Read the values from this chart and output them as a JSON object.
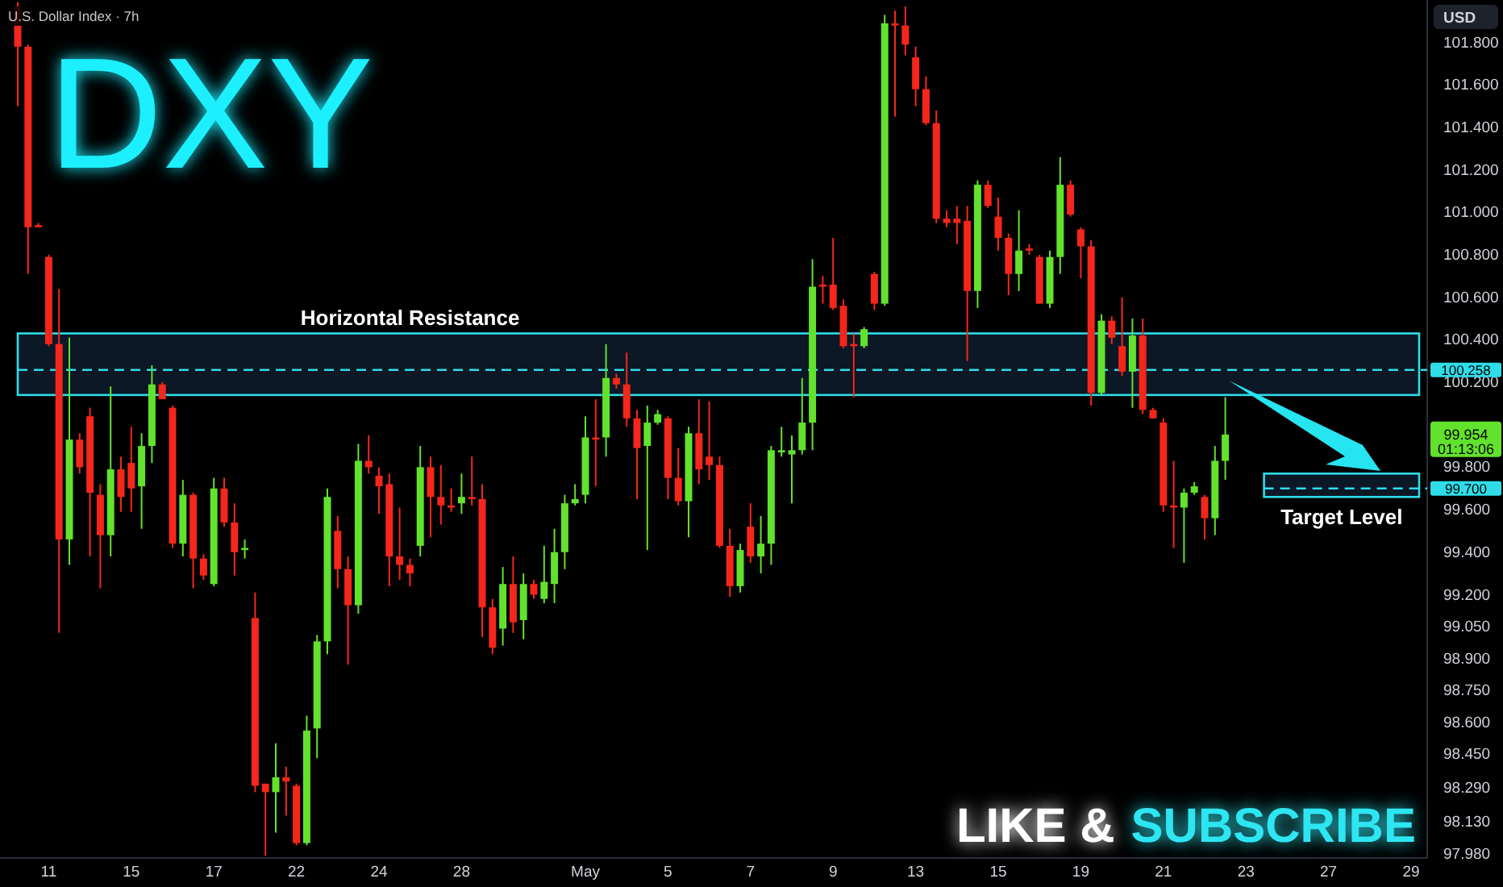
{
  "chart_data": {
    "type": "candlestick",
    "title": "DXY",
    "subtitle": "U.S. Dollar Index · 7h",
    "ylabel": "USD",
    "categories": [
      null,
      null,
      null,
      "11",
      null,
      null,
      null,
      null,
      null,
      null,
      null,
      "15",
      null,
      null,
      null,
      null,
      null,
      null,
      null,
      "17",
      null,
      null,
      null,
      null,
      null,
      null,
      null,
      "22",
      null,
      null,
      null,
      null,
      null,
      null,
      null,
      "24",
      null,
      null,
      null,
      null,
      null,
      null,
      null,
      "28",
      null,
      null,
      null,
      null,
      null,
      null,
      null,
      null,
      null,
      null,
      null,
      "May",
      null,
      null,
      null,
      null,
      null,
      null,
      null,
      "5",
      null,
      null,
      null,
      null,
      null,
      null,
      null,
      "7",
      null,
      null,
      null,
      null,
      null,
      null,
      null,
      "9",
      null,
      null,
      null,
      null,
      null,
      null,
      null,
      "13",
      null,
      null,
      null,
      null,
      null,
      null,
      null,
      "15",
      null,
      null,
      null,
      null,
      null,
      null,
      null,
      "19",
      null,
      null,
      null,
      null,
      null,
      null,
      null,
      "21",
      null,
      null,
      null,
      null,
      null,
      null,
      null,
      "23",
      null,
      null,
      null,
      null,
      null,
      null,
      null,
      "27",
      null,
      null,
      null,
      null,
      null,
      null,
      null,
      "29",
      null
    ],
    "ohlc": [
      [
        101.97,
        101.99,
        101.5,
        101.78
      ],
      [
        101.78,
        101.79,
        100.71,
        100.93
      ],
      [
        100.94,
        100.95,
        100.93,
        100.93
      ],
      [
        100.79,
        100.8,
        100.37,
        100.38
      ],
      [
        100.38,
        100.64,
        99.02,
        99.46
      ],
      [
        99.46,
        100.41,
        99.34,
        99.93
      ],
      [
        99.93,
        99.96,
        99.77,
        99.8
      ],
      [
        100.04,
        100.08,
        99.38,
        99.68
      ],
      [
        99.67,
        99.72,
        99.23,
        99.48
      ],
      [
        99.48,
        100.18,
        99.38,
        99.79
      ],
      [
        99.79,
        99.85,
        99.59,
        99.66
      ],
      [
        99.82,
        99.99,
        99.59,
        99.7
      ],
      [
        99.71,
        99.96,
        99.51,
        99.9
      ],
      [
        99.9,
        100.28,
        99.82,
        100.19
      ],
      [
        100.19,
        100.2,
        100.12,
        100.12
      ],
      [
        100.08,
        100.09,
        99.42,
        99.44
      ],
      [
        99.44,
        99.74,
        99.38,
        99.67
      ],
      [
        99.67,
        99.68,
        99.23,
        99.37
      ],
      [
        99.37,
        99.39,
        99.27,
        99.29
      ],
      [
        99.25,
        99.75,
        99.24,
        99.7
      ],
      [
        99.7,
        99.75,
        99.52,
        99.54
      ],
      [
        99.54,
        99.63,
        99.29,
        99.4
      ],
      [
        99.41,
        99.46,
        99.37,
        99.42
      ],
      [
        99.09,
        99.21,
        98.27,
        98.3
      ],
      [
        98.31,
        98.31,
        97.97,
        98.27
      ],
      [
        98.27,
        98.5,
        98.08,
        98.34
      ],
      [
        98.34,
        98.39,
        98.16,
        98.32
      ],
      [
        98.3,
        98.31,
        98.02,
        98.03
      ],
      [
        98.03,
        98.63,
        98.02,
        98.56
      ],
      [
        98.57,
        99.01,
        98.43,
        98.98
      ],
      [
        98.98,
        99.7,
        98.92,
        99.66
      ],
      [
        99.5,
        99.57,
        99.23,
        99.32
      ],
      [
        99.32,
        99.38,
        98.87,
        99.15
      ],
      [
        99.15,
        99.91,
        99.11,
        99.83
      ],
      [
        99.83,
        99.95,
        99.77,
        99.8
      ],
      [
        99.76,
        99.8,
        99.58,
        99.71
      ],
      [
        99.72,
        99.77,
        99.24,
        99.38
      ],
      [
        99.38,
        99.61,
        99.27,
        99.34
      ],
      [
        99.34,
        99.37,
        99.24,
        99.3
      ],
      [
        99.43,
        99.9,
        99.38,
        99.8
      ],
      [
        99.8,
        99.85,
        99.47,
        99.66
      ],
      [
        99.66,
        99.81,
        99.53,
        99.62
      ],
      [
        99.62,
        99.7,
        99.59,
        99.61
      ],
      [
        99.63,
        99.77,
        99.58,
        99.66
      ],
      [
        99.66,
        99.85,
        99.62,
        99.65
      ],
      [
        99.65,
        99.72,
        99.0,
        99.14
      ],
      [
        99.14,
        99.18,
        98.92,
        98.95
      ],
      [
        99.04,
        99.33,
        98.96,
        99.25
      ],
      [
        99.25,
        99.38,
        99.02,
        99.07
      ],
      [
        99.08,
        99.3,
        98.99,
        99.25
      ],
      [
        99.25,
        99.27,
        99.18,
        99.2
      ],
      [
        99.18,
        99.43,
        99.16,
        99.26
      ],
      [
        99.25,
        99.51,
        99.16,
        99.4
      ],
      [
        99.4,
        99.67,
        99.32,
        99.63
      ],
      [
        99.63,
        99.72,
        99.62,
        99.65
      ],
      [
        99.67,
        100.04,
        99.63,
        99.94
      ],
      [
        99.94,
        100.12,
        99.71,
        99.93
      ],
      [
        99.94,
        100.38,
        99.85,
        100.22
      ],
      [
        100.22,
        100.24,
        100.17,
        100.19
      ],
      [
        100.19,
        100.34,
        99.99,
        100.03
      ],
      [
        100.03,
        100.07,
        99.65,
        99.89
      ],
      [
        99.9,
        100.09,
        99.41,
        100.01
      ],
      [
        100.01,
        100.07,
        100.0,
        100.05
      ],
      [
        100.03,
        100.04,
        99.65,
        99.75
      ],
      [
        99.75,
        99.89,
        99.62,
        99.64
      ],
      [
        99.64,
        99.99,
        99.47,
        99.96
      ],
      [
        99.96,
        100.12,
        99.72,
        99.79
      ],
      [
        99.85,
        100.11,
        99.74,
        99.81
      ],
      [
        99.81,
        99.85,
        99.42,
        99.43
      ],
      [
        99.43,
        99.51,
        99.19,
        99.24
      ],
      [
        99.24,
        99.44,
        99.21,
        99.41
      ],
      [
        99.52,
        99.63,
        99.35,
        99.38
      ],
      [
        99.38,
        99.57,
        99.3,
        99.44
      ],
      [
        99.44,
        99.9,
        99.34,
        99.88
      ],
      [
        99.87,
        99.99,
        99.85,
        99.88
      ],
      [
        99.86,
        99.95,
        99.63,
        99.88
      ],
      [
        99.88,
        100.22,
        99.86,
        100.01
      ],
      [
        100.01,
        100.78,
        99.88,
        100.65
      ],
      [
        100.66,
        100.7,
        100.57,
        100.65
      ],
      [
        100.66,
        100.88,
        100.54,
        100.55
      ],
      [
        100.56,
        100.59,
        100.36,
        100.37
      ],
      [
        100.38,
        100.43,
        100.13,
        100.37
      ],
      [
        100.37,
        100.46,
        100.36,
        100.45
      ],
      [
        100.71,
        100.72,
        100.54,
        100.57
      ],
      [
        100.57,
        101.93,
        100.56,
        101.89
      ],
      [
        101.89,
        101.95,
        101.45,
        101.88
      ],
      [
        101.88,
        101.97,
        101.74,
        101.79
      ],
      [
        101.73,
        101.78,
        101.5,
        101.58
      ],
      [
        101.58,
        101.64,
        101.41,
        101.42
      ],
      [
        101.42,
        101.48,
        100.95,
        100.97
      ],
      [
        100.97,
        101.01,
        100.93,
        100.95
      ],
      [
        100.97,
        101.03,
        100.85,
        100.95
      ],
      [
        100.96,
        101.03,
        100.3,
        100.63
      ],
      [
        100.63,
        101.15,
        100.55,
        101.13
      ],
      [
        101.13,
        101.15,
        101.02,
        101.03
      ],
      [
        100.98,
        101.07,
        100.82,
        100.88
      ],
      [
        100.88,
        100.9,
        100.61,
        100.71
      ],
      [
        100.71,
        101.01,
        100.63,
        100.82
      ],
      [
        100.83,
        100.85,
        100.8,
        100.82
      ],
      [
        100.79,
        100.8,
        100.57,
        100.57
      ],
      [
        100.57,
        100.82,
        100.55,
        100.79
      ],
      [
        100.79,
        101.26,
        100.71,
        101.13
      ],
      [
        101.13,
        101.15,
        100.98,
        100.99
      ],
      [
        100.92,
        100.93,
        100.69,
        100.84
      ],
      [
        100.84,
        100.87,
        100.09,
        100.15
      ],
      [
        100.15,
        100.52,
        100.14,
        100.49
      ],
      [
        100.49,
        100.51,
        100.38,
        100.41
      ],
      [
        100.37,
        100.6,
        100.23,
        100.25
      ],
      [
        100.25,
        100.5,
        100.08,
        100.42
      ],
      [
        100.42,
        100.5,
        100.05,
        100.07
      ],
      [
        100.07,
        100.08,
        100.03,
        100.03
      ],
      [
        100.01,
        100.03,
        99.59,
        99.62
      ],
      [
        99.62,
        99.83,
        99.42,
        99.61
      ],
      [
        99.61,
        99.7,
        99.35,
        99.68
      ],
      [
        99.68,
        99.73,
        99.67,
        99.71
      ],
      [
        99.66,
        99.67,
        99.46,
        99.56
      ],
      [
        99.56,
        99.9,
        99.48,
        99.83
      ],
      [
        99.83,
        100.13,
        99.74,
        99.954
      ],
      null,
      null,
      null,
      null,
      null,
      null,
      null,
      null,
      null,
      null,
      null,
      null,
      null,
      null,
      null,
      null,
      null,
      null,
      null
    ],
    "colors": [
      "#f5261b",
      "#f5261b",
      "#f5261b",
      "#f5261b",
      "#f5261b",
      "#62e22d",
      "#f5261b",
      "#f5261b",
      "#f5261b",
      "#62e22d",
      "#f5261b",
      "#f5261b",
      "#62e22d",
      "#62e22d",
      "#f5261b",
      "#f5261b",
      "#62e22d",
      "#f5261b",
      "#f5261b",
      "#62e22d",
      "#f5261b",
      "#f5261b",
      "#62e22d",
      "#f5261b",
      "#f5261b",
      "#62e22d",
      "#f5261b",
      "#f5261b",
      "#62e22d",
      "#62e22d",
      "#62e22d",
      "#f5261b",
      "#f5261b",
      "#62e22d",
      "#f5261b",
      "#f5261b",
      "#f5261b",
      "#f5261b",
      "#f5261b",
      "#62e22d",
      "#f5261b",
      "#f5261b",
      "#f5261b",
      "#62e22d",
      "#f5261b",
      "#f5261b",
      "#f5261b",
      "#62e22d",
      "#f5261b",
      "#62e22d",
      "#f5261b",
      "#62e22d",
      "#62e22d",
      "#62e22d",
      "#62e22d",
      "#62e22d",
      "#f5261b",
      "#62e22d",
      "#f5261b",
      "#f5261b",
      "#f5261b",
      "#62e22d",
      "#62e22d",
      "#f5261b",
      "#f5261b",
      "#62e22d",
      "#f5261b",
      "#f5261b",
      "#f5261b",
      "#f5261b",
      "#62e22d",
      "#f5261b",
      "#62e22d",
      "#62e22d",
      "#62e22d",
      "#62e22d",
      "#62e22d",
      "#62e22d",
      "#f5261b",
      "#f5261b",
      "#f5261b",
      "#f5261b",
      "#62e22d",
      "#f5261b",
      "#62e22d",
      "#f5261b",
      "#f5261b",
      "#f5261b",
      "#f5261b",
      "#f5261b",
      "#f5261b",
      "#f5261b",
      "#f5261b",
      "#62e22d",
      "#f5261b",
      "#f5261b",
      "#f5261b",
      "#62e22d",
      "#f5261b",
      "#f5261b",
      "#62e22d",
      "#62e22d",
      "#f5261b",
      "#f5261b",
      "#f5261b",
      "#62e22d",
      "#f5261b",
      "#f5261b",
      "#62e22d",
      "#f5261b",
      "#f5261b",
      "#f5261b",
      "#f5261b",
      "#62e22d",
      "#62e22d",
      "#f5261b",
      "#62e22d",
      "#62e22d",
      null,
      null,
      null,
      null,
      null,
      null,
      null,
      null,
      null,
      null,
      null,
      null,
      null,
      null,
      null,
      null,
      null,
      null,
      null
    ],
    "ylim": [
      97.96,
      102.0
    ],
    "yticks": [
      {
        "value": 101.8,
        "label": "101.800"
      },
      {
        "value": 101.6,
        "label": "101.600"
      },
      {
        "value": 101.4,
        "label": "101.400"
      },
      {
        "value": 101.2,
        "label": "101.200"
      },
      {
        "value": 101.0,
        "label": "101.000"
      },
      {
        "value": 100.8,
        "label": "100.800"
      },
      {
        "value": 100.6,
        "label": "100.600"
      },
      {
        "value": 100.4,
        "label": "100.400"
      },
      {
        "value": 100.2,
        "label": "100.200"
      },
      {
        "value": 99.8,
        "label": "99.800"
      },
      {
        "value": 99.6,
        "label": "99.600"
      },
      {
        "value": 99.4,
        "label": "99.400"
      },
      {
        "value": 99.2,
        "label": "99.200"
      },
      {
        "value": 99.05,
        "label": "99.050"
      },
      {
        "value": 98.9,
        "label": "98.900"
      },
      {
        "value": 98.75,
        "label": "98.750"
      },
      {
        "value": 98.6,
        "label": "98.600"
      },
      {
        "value": 98.45,
        "label": "98.450"
      },
      {
        "value": 98.29,
        "label": "98.290"
      },
      {
        "value": 98.13,
        "label": "98.130"
      },
      {
        "value": 97.98,
        "label": "97.980"
      }
    ],
    "bands": [
      {
        "axis": "y",
        "from": 100.14,
        "to": 100.43,
        "label": "Horizontal Resistance",
        "color": "#2fdde8"
      },
      {
        "axis": "y",
        "from": 99.66,
        "to": 99.77,
        "label": "Target Level",
        "color": "#2fdde8"
      }
    ],
    "ref_lines": [
      {
        "axis": "y",
        "value": 100.258,
        "label": "100.258",
        "color": "#2fdde8",
        "line_style": "dashed"
      },
      {
        "axis": "y",
        "value": 99.7,
        "label": "99.700",
        "color": "#2fdde8",
        "line_style": "dashed"
      }
    ],
    "annotations": [
      "99.954",
      "01:13:06",
      "LIKE &",
      "SUBSCRIBE"
    ],
    "grid": false
  }
}
